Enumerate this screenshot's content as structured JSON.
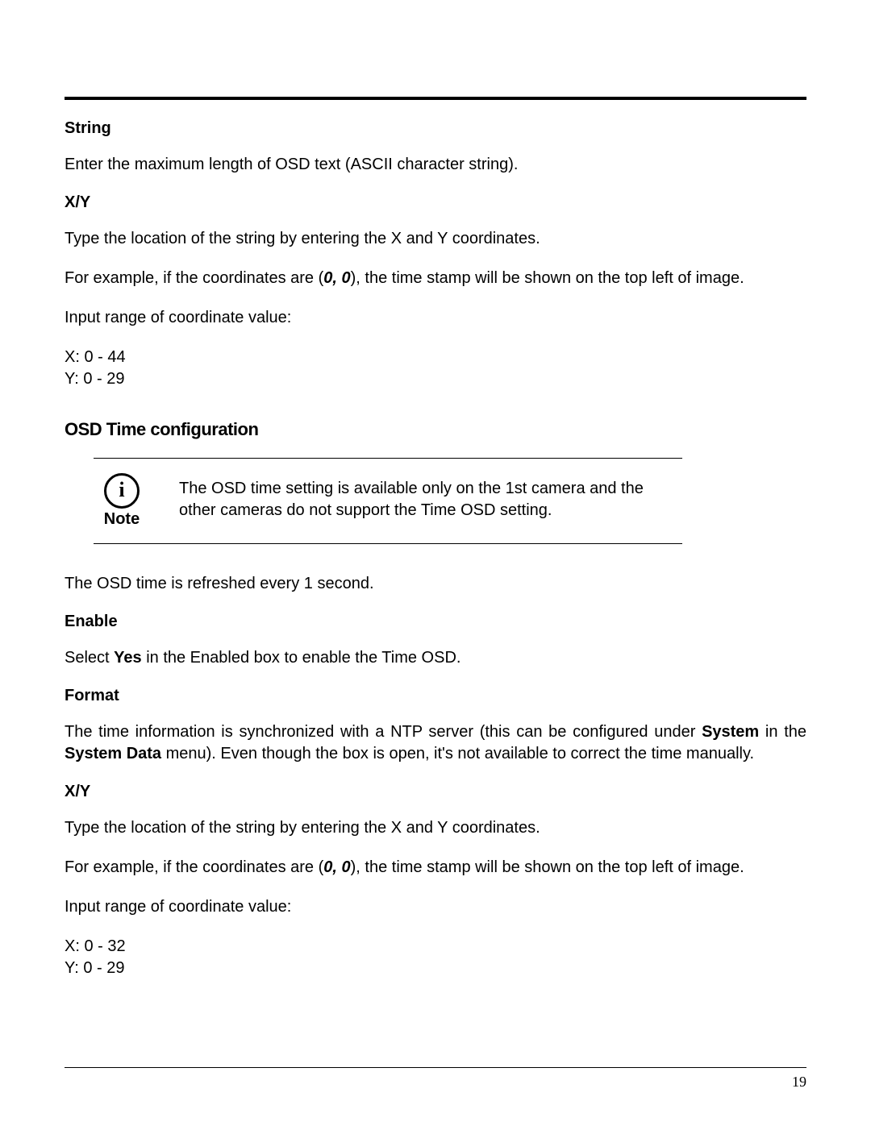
{
  "page_number": "19",
  "sections": {
    "string": {
      "heading": "String",
      "desc": "Enter the maximum length of OSD text (ASCII character string)."
    },
    "xy1": {
      "heading": "X/Y",
      "line1": "Type the location of the string by entering the X and Y coordinates.",
      "line2_pre": "For example, if the coordinates are (",
      "line2_coord": "0, 0",
      "line2_post": "), the time stamp will be shown on the top left of image.",
      "line3": "Input range of coordinate value:",
      "x_range": "X: 0 - 44",
      "y_range": "Y: 0 - 29"
    },
    "osd_time": {
      "title": "OSD Time configuration",
      "note_label": "Note",
      "note_text": "The OSD time setting is available only on the 1st camera and the other cameras do not support the Time OSD setting.",
      "refresh": "The OSD time is refreshed every 1 second."
    },
    "enable": {
      "heading": "Enable",
      "pre": "Select ",
      "yes": "Yes",
      "post": " in the Enabled box to enable the Time OSD."
    },
    "format": {
      "heading": "Format",
      "p1_a": "The time information is synchronized with a NTP server (this can be configured under ",
      "p1_sys": "System",
      "p1_b": " in the ",
      "p1_sysdata": "System Data",
      "p1_c": " menu).  Even though the box is open, it's not available to correct the time manually."
    },
    "xy2": {
      "heading": "X/Y",
      "line1": "Type the location of the string by entering the X and Y coordinates.",
      "line2_pre": "For example, if the coordinates are (",
      "line2_coord": "0, 0",
      "line2_post": "), the time stamp will be shown on the top left of image.",
      "line3": "Input range of coordinate value:",
      "x_range": "X: 0 - 32",
      "y_range": "Y: 0 - 29"
    }
  }
}
